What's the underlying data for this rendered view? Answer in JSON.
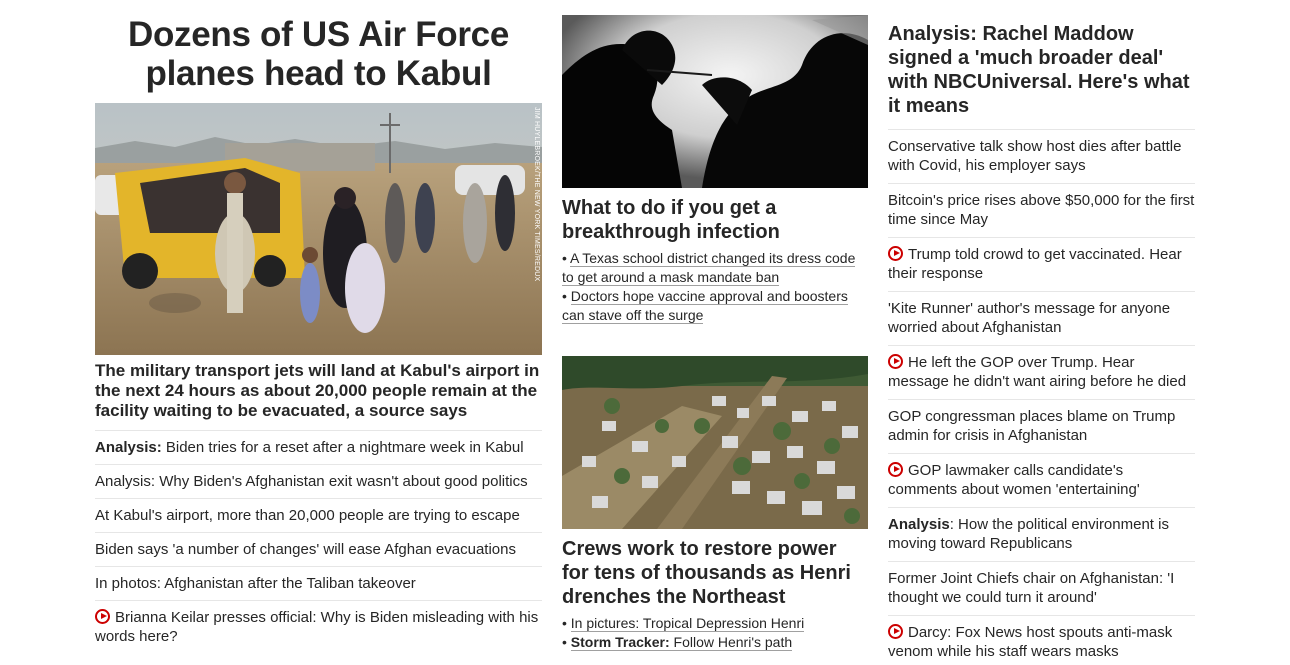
{
  "left": {
    "title": "Dozens of US Air Force planes head to Kabul",
    "photo_credit": "JIM HUYLEBROEK/THE NEW YORK TIMES/REDUX",
    "summary": "The military transport jets will land at Kabul's airport in the next 24 hours as about 20,000 people remain at the facility waiting to be evacuated, a source says",
    "items": [
      {
        "strong": "Analysis:",
        "text": " Biden tries for a reset after a nightmare week in Kabul",
        "video": false
      },
      {
        "strong": "",
        "text": "Analysis: Why Biden's Afghanistan exit wasn't about good politics",
        "video": false
      },
      {
        "strong": "",
        "text": "At Kabul's airport, more than 20,000 people are trying to escape",
        "video": false
      },
      {
        "strong": "",
        "text": "Biden says 'a number of changes' will ease Afghan evacuations",
        "video": false
      },
      {
        "strong": "",
        "text": "In photos: Afghanistan after the Taliban takeover",
        "video": false
      },
      {
        "strong": "",
        "text": "Brianna Keilar presses official: Why is Biden misleading with his words here?",
        "video": true
      }
    ]
  },
  "middle": {
    "card1": {
      "title": "What to do if you get a breakthrough infection",
      "bullets": [
        {
          "strong": "",
          "text": "A Texas school district changed its dress code to get around a mask mandate ban"
        },
        {
          "strong": "",
          "text": "Doctors hope vaccine approval and boosters can stave off the surge"
        }
      ]
    },
    "card2": {
      "title": "Crews work to restore power for tens of thousands as Henri drenches the Northeast",
      "bullets": [
        {
          "strong": "",
          "text": "In pictures: Tropical Depression Henri"
        },
        {
          "strong": "Storm Tracker:",
          "text": "Follow Henri's path"
        }
      ]
    }
  },
  "right": {
    "title": "Analysis: Rachel Maddow signed a 'much broader deal' with NBCUniversal. Here's what it means",
    "items": [
      {
        "strong": "",
        "text": "Conservative talk show host dies after battle with Covid, his employer says",
        "video": false
      },
      {
        "strong": "",
        "text": "Bitcoin's price rises above $50,000 for the first time since May",
        "video": false
      },
      {
        "strong": "",
        "text": "Trump told crowd to get vaccinated. Hear their response",
        "video": true
      },
      {
        "strong": "",
        "text": "'Kite Runner' author's message for anyone worried about Afghanistan",
        "video": false
      },
      {
        "strong": "",
        "text": "He left the GOP over Trump. Hear message he didn't want airing before he died",
        "video": true
      },
      {
        "strong": "",
        "text": "GOP congressman places blame on Trump admin for crisis in Afghanistan",
        "video": false
      },
      {
        "strong": "",
        "text": "GOP lawmaker calls candidate's comments about women 'entertaining'",
        "video": true
      },
      {
        "strong": "Analysis",
        "text": ": How the political environment is moving toward Republicans",
        "video": false
      },
      {
        "strong": "",
        "text": "Former Joint Chiefs chair on Afghanistan: 'I thought we could turn it around'",
        "video": false
      },
      {
        "strong": "",
        "text": "Darcy: Fox News host spouts anti-mask venom while his staff wears masks",
        "video": true
      }
    ]
  },
  "colors": {
    "text": "#262626",
    "divider": "#e6e6e6",
    "video_red": "#cc0000"
  }
}
